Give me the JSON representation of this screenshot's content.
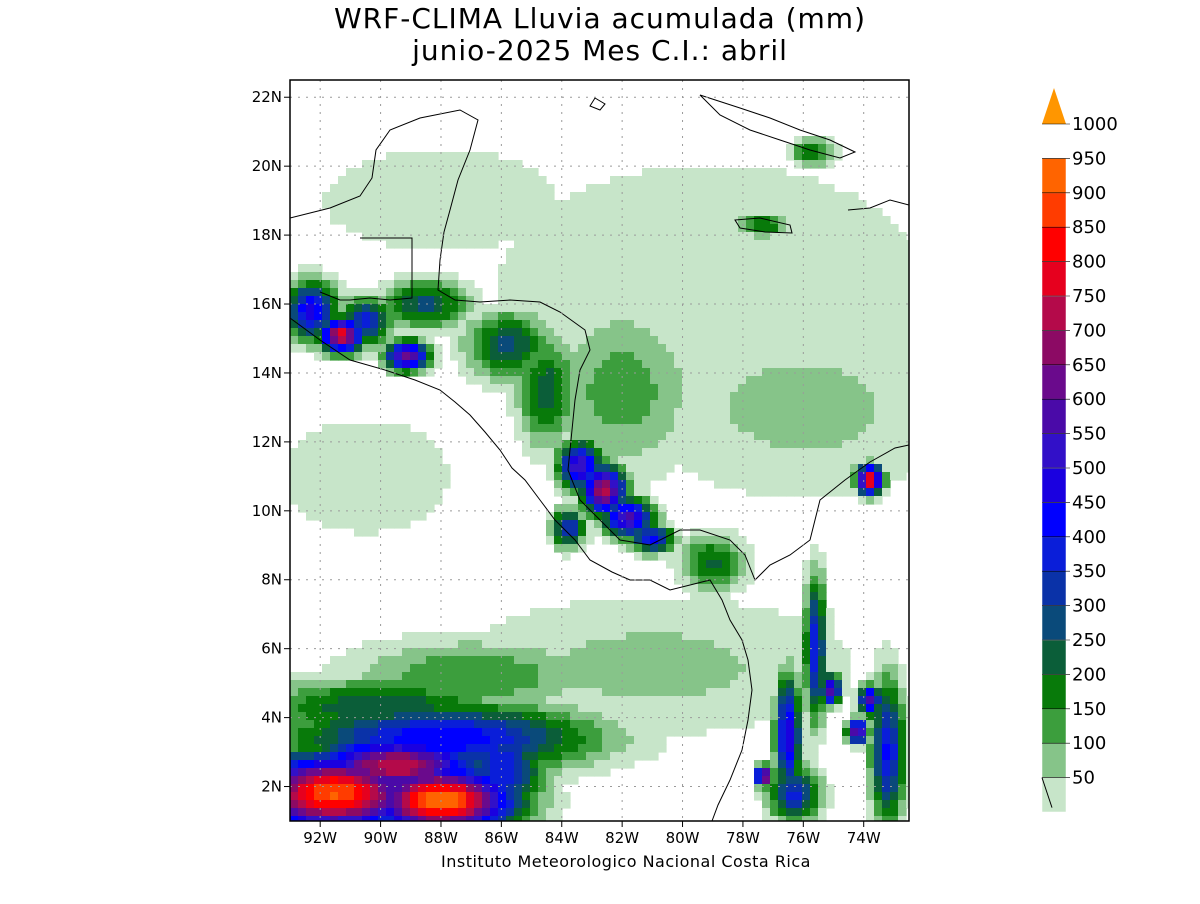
{
  "title": {
    "line1": "WRF-CLIMA Lluvia acumulada (mm)",
    "line2": "junio-2025 Mes C.I.: abril"
  },
  "credit": "Instituto Meteorologico Nacional Costa Rica",
  "axes": {
    "lon_ticks": [
      "92W",
      "90W",
      "88W",
      "86W",
      "84W",
      "82W",
      "80W",
      "78W",
      "76W",
      "74W"
    ],
    "lat_ticks": [
      "22N",
      "20N",
      "18N",
      "16N",
      "14N",
      "12N",
      "10N",
      "8N",
      "6N",
      "4N",
      "2N"
    ],
    "lon_range": [
      -93,
      -72.5
    ],
    "lat_range": [
      1,
      22.5
    ],
    "grid": "dotted"
  },
  "colorbar": {
    "levels": [
      "50",
      "100",
      "150",
      "200",
      "250",
      "300",
      "350",
      "400",
      "450",
      "500",
      "550",
      "600",
      "650",
      "700",
      "750",
      "800",
      "850",
      "900",
      "950",
      "1000"
    ],
    "colors": [
      "#ffffff",
      "#c7e5c9",
      "#86c489",
      "#3c9e3d",
      "#087a0a",
      "#0b5e39",
      "#0a4a7a",
      "#0a32a8",
      "#0a1ed9",
      "#0000ff",
      "#1a00e0",
      "#3210c8",
      "#4a0aa8",
      "#6a0a8c",
      "#8c0a64",
      "#b40a4a",
      "#e6001e",
      "#ff0000",
      "#ff3c00",
      "#ff6400",
      "#ff9600"
    ],
    "extend": "max"
  },
  "chart_data": {
    "type": "heatmap",
    "title": "WRF-CLIMA Lluvia acumulada (mm)",
    "subtitle": "junio-2025 Mes C.I.: abril",
    "units": "mm",
    "x_range": [
      -93,
      -72.5
    ],
    "y_range": [
      1,
      22.5
    ],
    "legend": "right",
    "rain_centers": [
      {
        "lon": -92.3,
        "lat": 15.8,
        "mm": 520,
        "slon": 0.6,
        "slat": 0.6
      },
      {
        "lon": -91.3,
        "lat": 15.1,
        "mm": 850,
        "slon": 0.5,
        "slat": 0.35
      },
      {
        "lon": -89.1,
        "lat": 14.5,
        "mm": 700,
        "slon": 0.5,
        "slat": 0.3
      },
      {
        "lon": -90.5,
        "lat": 15.5,
        "mm": 420,
        "slon": 0.6,
        "slat": 0.5
      },
      {
        "lon": -88.5,
        "lat": 16.0,
        "mm": 320,
        "slon": 1.0,
        "slat": 0.5
      },
      {
        "lon": -85.8,
        "lat": 14.8,
        "mm": 320,
        "slon": 1.0,
        "slat": 0.7
      },
      {
        "lon": -84.5,
        "lat": 13.5,
        "mm": 280,
        "slon": 0.7,
        "slat": 1.2
      },
      {
        "lon": -82.6,
        "lat": 10.6,
        "mm": 780,
        "slon": 0.5,
        "slat": 0.5
      },
      {
        "lon": -83.4,
        "lat": 11.3,
        "mm": 600,
        "slon": 0.5,
        "slat": 0.5
      },
      {
        "lon": -81.8,
        "lat": 9.8,
        "mm": 620,
        "slon": 0.6,
        "slat": 0.4
      },
      {
        "lon": -81.0,
        "lat": 9.2,
        "mm": 480,
        "slon": 0.5,
        "slat": 0.3
      },
      {
        "lon": -83.8,
        "lat": 9.5,
        "mm": 420,
        "slon": 0.4,
        "slat": 0.4
      },
      {
        "lon": -73.8,
        "lat": 10.9,
        "mm": 880,
        "slon": 0.3,
        "slat": 0.3
      },
      {
        "lon": -75.6,
        "lat": 6.0,
        "mm": 450,
        "slon": 0.25,
        "slat": 1.5
      },
      {
        "lon": -75.1,
        "lat": 4.8,
        "mm": 650,
        "slon": 0.25,
        "slat": 0.3
      },
      {
        "lon": -76.5,
        "lat": 3.5,
        "mm": 550,
        "slon": 0.3,
        "slat": 1.2
      },
      {
        "lon": -77.3,
        "lat": 2.3,
        "mm": 800,
        "slon": 0.2,
        "slat": 0.2
      },
      {
        "lon": -76.3,
        "lat": 1.8,
        "mm": 420,
        "slon": 0.6,
        "slat": 0.6
      },
      {
        "lon": -73.8,
        "lat": 4.5,
        "mm": 650,
        "slon": 0.25,
        "slat": 0.3
      },
      {
        "lon": -73.2,
        "lat": 3.0,
        "mm": 460,
        "slon": 0.4,
        "slat": 1.5
      },
      {
        "lon": -74.2,
        "lat": 3.6,
        "mm": 700,
        "slon": 0.25,
        "slat": 0.25
      },
      {
        "lon": -91.5,
        "lat": 1.8,
        "mm": 960,
        "slon": 2.0,
        "slat": 0.8
      },
      {
        "lon": -88.0,
        "lat": 1.6,
        "mm": 1000,
        "slon": 1.7,
        "slat": 0.7
      },
      {
        "lon": -89.5,
        "lat": 2.6,
        "mm": 800,
        "slon": 2.0,
        "slat": 0.6
      },
      {
        "lon": -88.0,
        "lat": 3.4,
        "mm": 500,
        "slon": 3.5,
        "slat": 0.7
      },
      {
        "lon": -86.0,
        "lat": 2.5,
        "mm": 450,
        "slon": 1.0,
        "slat": 1.0
      },
      {
        "lon": -90.0,
        "lat": 4.3,
        "mm": 300,
        "slon": 3.0,
        "slat": 0.6
      },
      {
        "lon": -87.0,
        "lat": 5.2,
        "mm": 200,
        "slon": 3.0,
        "slat": 0.8
      },
      {
        "lon": -81.0,
        "lat": 5.5,
        "mm": 120,
        "slon": 5.0,
        "slat": 1.5
      },
      {
        "lon": -79.0,
        "lat": 16.5,
        "mm": 100,
        "slon": 6.0,
        "slat": 3.0
      },
      {
        "lon": -76.0,
        "lat": 13.0,
        "mm": 120,
        "slon": 4.0,
        "slat": 2.0
      },
      {
        "lon": -90.5,
        "lat": 11.0,
        "mm": 90,
        "slon": 2.5,
        "slat": 1.5
      },
      {
        "lon": -88.0,
        "lat": 19.0,
        "mm": 80,
        "slon": 4.0,
        "slat": 1.5
      },
      {
        "lon": -77.3,
        "lat": 18.3,
        "mm": 260,
        "slon": 0.6,
        "slat": 0.25
      },
      {
        "lon": -75.7,
        "lat": 20.4,
        "mm": 260,
        "slon": 0.5,
        "slat": 0.3
      },
      {
        "lon": -82.0,
        "lat": 13.5,
        "mm": 180,
        "slon": 1.8,
        "slat": 1.8
      },
      {
        "lon": -79.0,
        "lat": 8.5,
        "mm": 260,
        "slon": 0.8,
        "slat": 0.6
      }
    ]
  }
}
